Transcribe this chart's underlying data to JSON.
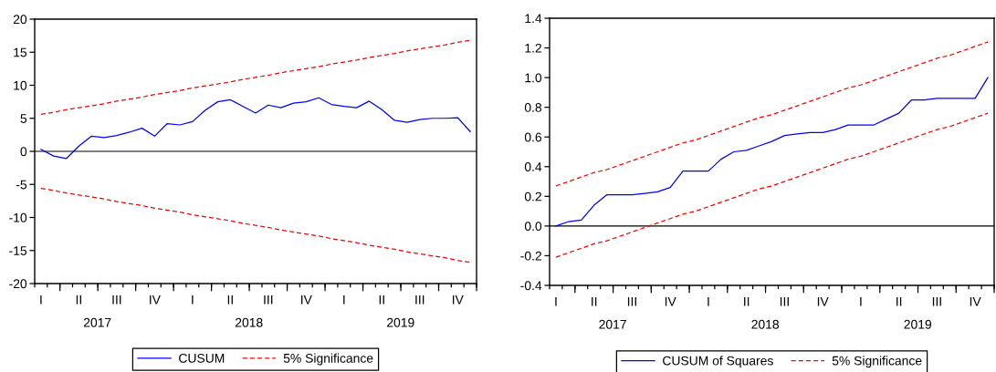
{
  "chart_data": [
    {
      "type": "line",
      "categories": [
        "I",
        null,
        null,
        "II",
        null,
        null,
        "III",
        null,
        null,
        "IV",
        null,
        null,
        "I",
        null,
        null,
        "II",
        null,
        null,
        "III",
        null,
        null,
        "IV",
        null,
        null,
        "I",
        null,
        null,
        "II",
        null,
        null,
        "III",
        null,
        null,
        "IV",
        null
      ],
      "series": [
        {
          "name": "CUSUM",
          "color": "#0000ff",
          "line_style": "solid",
          "values": [
            0.3,
            -0.7,
            -1.1,
            0.8,
            2.3,
            2.1,
            2.4,
            2.9,
            3.5,
            2.3,
            4.2,
            4.0,
            4.5,
            6.2,
            7.5,
            7.8,
            6.8,
            5.8,
            7.0,
            6.6,
            7.3,
            7.5,
            8.1,
            7.1,
            6.8,
            6.6,
            7.6,
            6.3,
            4.7,
            4.4,
            4.8,
            5.0,
            5.0,
            5.1,
            3.0
          ]
        },
        {
          "name": "5% Significance",
          "color": "#ff0000",
          "line_style": "dashed",
          "values": [
            5.6,
            5.9,
            6.3,
            6.6,
            6.9,
            7.2,
            7.6,
            7.9,
            8.2,
            8.6,
            8.9,
            9.2,
            9.6,
            9.9,
            10.2,
            10.5,
            10.9,
            11.2,
            11.5,
            11.9,
            12.2,
            12.5,
            12.8,
            13.2,
            13.5,
            13.8,
            14.2,
            14.5,
            14.8,
            15.2,
            15.5,
            15.8,
            16.1,
            16.5,
            16.8
          ]
        },
        {
          "color": "#ff0000",
          "line_style": "dashed",
          "values": [
            -5.6,
            -5.9,
            -6.3,
            -6.6,
            -6.9,
            -7.2,
            -7.6,
            -7.9,
            -8.2,
            -8.6,
            -8.9,
            -9.2,
            -9.6,
            -9.9,
            -10.2,
            -10.5,
            -10.9,
            -11.2,
            -11.5,
            -11.9,
            -12.2,
            -12.5,
            -12.8,
            -13.2,
            -13.5,
            -13.8,
            -14.2,
            -14.5,
            -14.8,
            -15.2,
            -15.5,
            -15.8,
            -16.1,
            -16.5,
            -16.8
          ]
        }
      ],
      "x2lim": [
        "2017-01-16",
        "2019-12-16"
      ],
      "x2ticks": [
        {
          "value": "2017-06-16",
          "label": "2017"
        },
        {
          "value": "2018-06-16",
          "label": "2018"
        },
        {
          "value": "2019-06-16",
          "label": "2019"
        }
      ],
      "ylim": [
        -20,
        20
      ],
      "yticks": [
        -20,
        -15,
        -10,
        -5,
        0,
        5,
        10,
        15,
        20
      ],
      "ref_lines": [
        {
          "axis": "y",
          "value": 0,
          "color": "#000000"
        }
      ],
      "legend": "bottom"
    },
    {
      "type": "line",
      "categories": [
        "I",
        null,
        null,
        "II",
        null,
        null,
        "III",
        null,
        null,
        "IV",
        null,
        null,
        "I",
        null,
        null,
        "II",
        null,
        null,
        "III",
        null,
        null,
        "IV",
        null,
        null,
        "I",
        null,
        null,
        "II",
        null,
        null,
        "III",
        null,
        null,
        "IV",
        null
      ],
      "series": [
        {
          "name": "CUSUM of Squares",
          "color": "#0000ff",
          "line_style": "solid",
          "values": [
            0.0,
            0.03,
            0.04,
            0.14,
            0.21,
            0.21,
            0.21,
            0.22,
            0.23,
            0.26,
            0.37,
            0.37,
            0.37,
            0.45,
            0.5,
            0.51,
            0.54,
            0.57,
            0.61,
            0.62,
            0.63,
            0.63,
            0.65,
            0.68,
            0.68,
            0.68,
            0.72,
            0.76,
            0.85,
            0.85,
            0.86,
            0.86,
            0.86,
            0.86,
            1.0
          ]
        },
        {
          "name": "5% Significance",
          "color": "#ff0000",
          "line_style": "dashed",
          "values": [
            0.27,
            0.3,
            0.33,
            0.36,
            0.38,
            0.41,
            0.44,
            0.47,
            0.5,
            0.53,
            0.56,
            0.58,
            0.61,
            0.64,
            0.67,
            0.7,
            0.73,
            0.75,
            0.78,
            0.81,
            0.84,
            0.87,
            0.9,
            0.93,
            0.95,
            0.98,
            1.01,
            1.04,
            1.07,
            1.1,
            1.13,
            1.15,
            1.18,
            1.21,
            1.24
          ]
        },
        {
          "color": "#ff0000",
          "line_style": "dashed",
          "values": [
            -0.21,
            -0.18,
            -0.15,
            -0.12,
            -0.1,
            -0.07,
            -0.04,
            -0.01,
            0.02,
            0.05,
            0.08,
            0.1,
            0.13,
            0.16,
            0.19,
            0.22,
            0.25,
            0.27,
            0.3,
            0.33,
            0.36,
            0.39,
            0.42,
            0.45,
            0.47,
            0.5,
            0.53,
            0.56,
            0.59,
            0.62,
            0.65,
            0.67,
            0.7,
            0.73,
            0.76
          ]
        }
      ],
      "x2lim": [
        "2017-01-16",
        "2019-12-16"
      ],
      "x2ticks": [
        {
          "value": "2017-06-16",
          "label": "2017"
        },
        {
          "value": "2018-06-16",
          "label": "2018"
        },
        {
          "value": "2019-06-16",
          "label": "2019"
        }
      ],
      "ylim": [
        -0.4,
        1.4
      ],
      "yticks": [
        -0.4,
        -0.2,
        {
          "value": 0,
          "label": "0.0"
        },
        0.2,
        0.4,
        0.6,
        0.8,
        {
          "value": 1,
          "label": "1.0"
        },
        1.2,
        1.4
      ],
      "ref_lines": [
        {
          "axis": "y",
          "value": 0,
          "color": "#000000"
        }
      ],
      "legend": "bottom"
    }
  ]
}
